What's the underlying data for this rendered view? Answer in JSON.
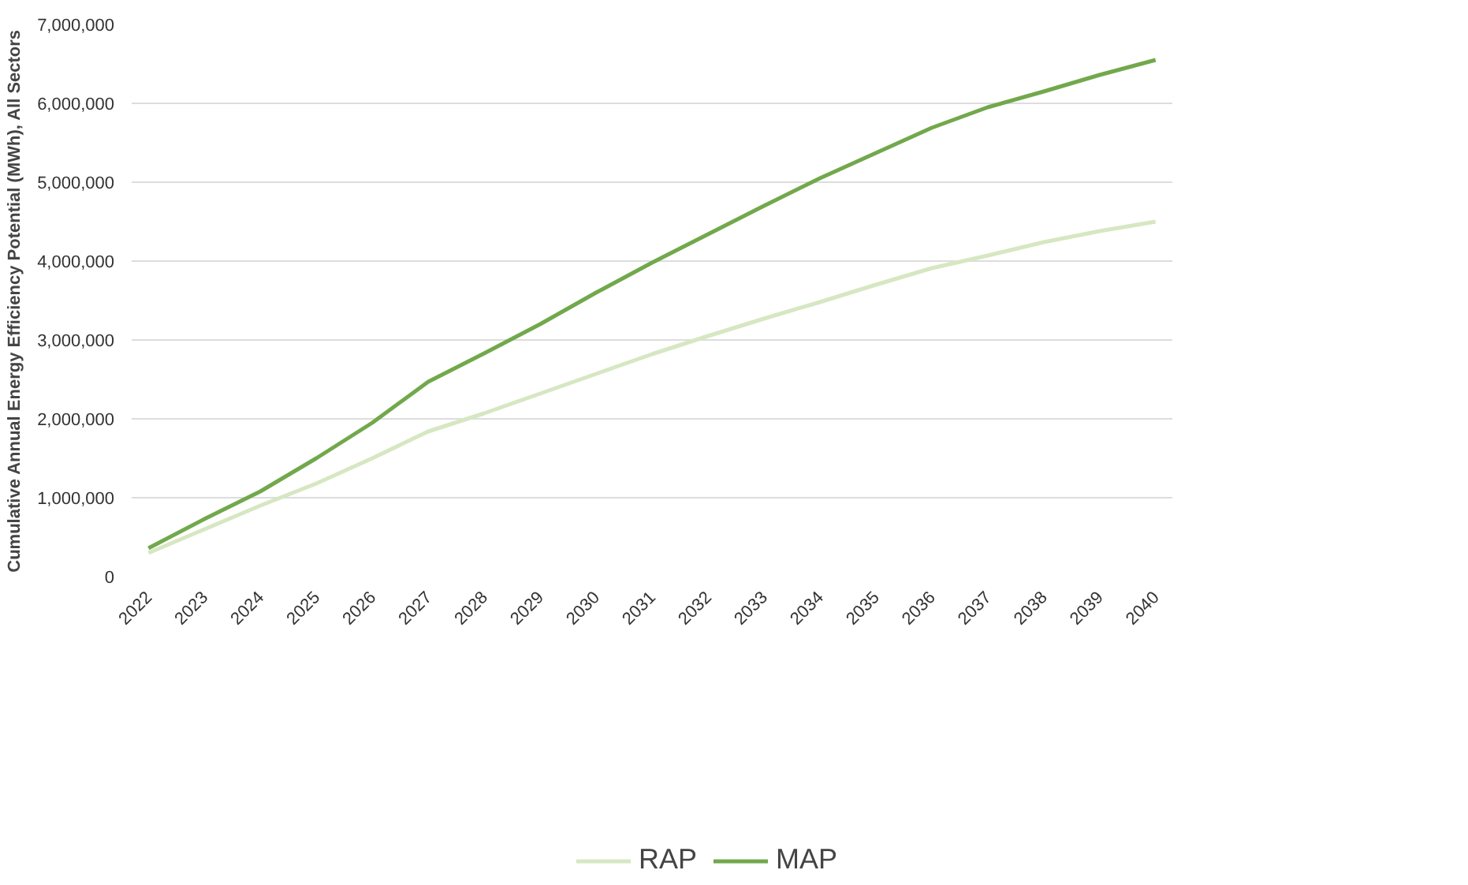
{
  "chart_data": {
    "type": "line",
    "ylabel": "Cumulative Annual Energy Efficiency Potential (MWh), All Sectors",
    "categories": [
      "2022",
      "2023",
      "2024",
      "2025",
      "2026",
      "2027",
      "2028",
      "2029",
      "2030",
      "2031",
      "2032",
      "2033",
      "2034",
      "2035",
      "2036",
      "2037",
      "2038",
      "2039",
      "2040"
    ],
    "series": [
      {
        "name": "RAP",
        "color": "#d6e7c2",
        "values": [
          300000,
          600000,
          900000,
          1180000,
          1500000,
          1840000,
          2070000,
          2320000,
          2570000,
          2820000,
          3050000,
          3270000,
          3480000,
          3700000,
          3910000,
          4070000,
          4240000,
          4380000,
          4500000
        ]
      },
      {
        "name": "MAP",
        "color": "#72a84c",
        "values": [
          360000,
          730000,
          1080000,
          1500000,
          1950000,
          2470000,
          2830000,
          3200000,
          3600000,
          3980000,
          4340000,
          4700000,
          5050000,
          5370000,
          5690000,
          5950000,
          6150000,
          6360000,
          6550000
        ]
      }
    ],
    "ylim": [
      0,
      7000000
    ],
    "yticks": [
      {
        "value": 0,
        "label": "0"
      },
      {
        "value": 1000000,
        "label": "1,000,000"
      },
      {
        "value": 2000000,
        "label": "2,000,000"
      },
      {
        "value": 3000000,
        "label": "3,000,000"
      },
      {
        "value": 4000000,
        "label": "4,000,000"
      },
      {
        "value": 5000000,
        "label": "5,000,000"
      },
      {
        "value": 6000000,
        "label": "6,000,000"
      },
      {
        "value": 7000000,
        "label": "7,000,000"
      }
    ],
    "grid": "y",
    "legend": "bottom",
    "marker": "none",
    "line_style": "solid"
  }
}
